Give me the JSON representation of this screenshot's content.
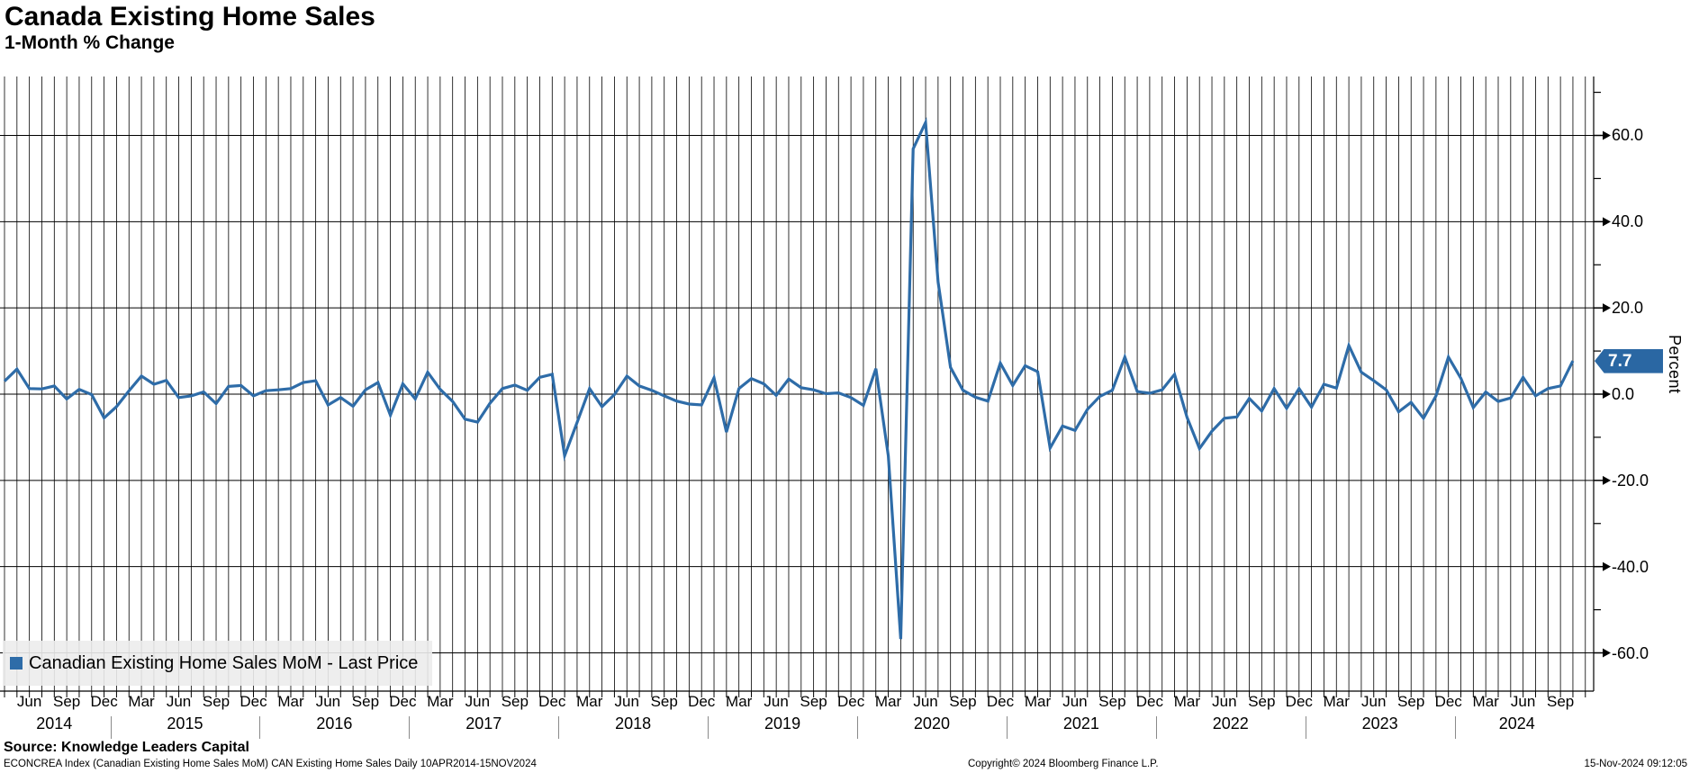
{
  "header": {
    "title": "Canada Existing Home Sales",
    "subtitle": "1-Month % Change"
  },
  "legend": {
    "series_label": "Canadian Existing Home Sales MoM - Last Price",
    "swatch_color": "#2e6ca8"
  },
  "last_price": {
    "label": "7.7",
    "value": 7.7,
    "badge_color": "#2a67a3"
  },
  "y_axis": {
    "unit_label": "Percent",
    "tick_labels": [
      "60.0",
      "40.0",
      "20.0",
      "0.0",
      "-20.0",
      "-40.0",
      "-60.0"
    ],
    "tick_values": [
      60,
      40,
      20,
      0,
      -20,
      -40,
      -60
    ],
    "minor_tick_values": [
      70,
      50,
      30,
      10,
      -10,
      -30,
      -50
    ]
  },
  "x_axis": {
    "month_labels": [
      "Jun",
      "Sep",
      "Dec",
      "Mar",
      "Jun",
      "Sep",
      "Dec",
      "Mar",
      "Jun",
      "Sep",
      "Dec",
      "Mar",
      "Jun",
      "Sep",
      "Dec",
      "Mar",
      "Jun",
      "Sep",
      "Dec",
      "Mar",
      "Jun",
      "Sep",
      "Dec",
      "Mar",
      "Jun",
      "Sep",
      "Dec",
      "Mar",
      "Jun",
      "Sep",
      "Dec",
      "Mar",
      "Jun",
      "Sep",
      "Dec",
      "Mar",
      "Jun",
      "Sep",
      "Dec",
      "Mar",
      "Jun",
      "Sep"
    ],
    "first_label_month_index": 2,
    "label_step": 3,
    "year_labels": [
      "2014",
      "2015",
      "2016",
      "2017",
      "2018",
      "2019",
      "2020",
      "2021",
      "2022",
      "2023",
      "2024"
    ]
  },
  "footer": {
    "source": "Source: Knowledge Leaders Capital",
    "left": "ECONCREA Index (Canadian Existing Home Sales MoM) CAN Existing Home Sales  Daily 10APR2014-15NOV2024",
    "center": "Copyright© 2024 Bloomberg Finance L.P.",
    "right": "15-Nov-2024 09:12:05"
  },
  "chart_data": {
    "type": "line",
    "title": "Canada Existing Home Sales",
    "subtitle": "1-Month % Change",
    "ylabel": "Percent",
    "ylim": [
      -69,
      74
    ],
    "y_ticks": [
      -60,
      -40,
      -20,
      0,
      20,
      40,
      60
    ],
    "grid": "vertical line each month, horizontal line each 20 units",
    "legend_position": "bottom-left",
    "line_color": "#2e6ca8",
    "series": [
      {
        "name": "Canadian Existing Home Sales MoM - Last Price",
        "start_month": "2014-04",
        "end_month": "2024-10",
        "frequency": "monthly",
        "values": [
          3.0,
          5.8,
          1.3,
          1.2,
          1.9,
          -1.1,
          1.1,
          -0.1,
          -5.5,
          -2.9,
          0.8,
          4.2,
          2.3,
          3.2,
          -0.8,
          -0.4,
          0.5,
          -2.2,
          1.8,
          2.0,
          -0.4,
          0.8,
          1.0,
          1.3,
          2.7,
          3.1,
          -2.5,
          -0.8,
          -2.8,
          1.0,
          2.7,
          -4.9,
          2.4,
          -1.1,
          5.1,
          1.1,
          -1.7,
          -5.8,
          -6.5,
          -2.1,
          1.3,
          2.1,
          0.9,
          3.9,
          4.6,
          -14.3,
          -6.6,
          1.3,
          -2.9,
          -0.1,
          4.2,
          1.9,
          0.9,
          -0.4,
          -1.6,
          -2.3,
          -2.5,
          3.8,
          -8.8,
          1.3,
          3.6,
          2.4,
          -0.3,
          3.5,
          1.5,
          1.0,
          0.1,
          0.3,
          -0.8,
          -2.6,
          5.9,
          -14.3,
          -56.8,
          56.9,
          63.0,
          26.0,
          6.2,
          0.9,
          -0.7,
          -1.6,
          7.2,
          2.0,
          6.6,
          5.2,
          -12.5,
          -7.4,
          -8.4,
          -3.5,
          -0.5,
          0.9,
          8.6,
          0.6,
          0.2,
          1.0,
          4.6,
          -5.4,
          -12.6,
          -8.6,
          -5.6,
          -5.3,
          -1.0,
          -3.9,
          1.3,
          -3.3,
          1.3,
          -3.0,
          2.3,
          1.4,
          11.3,
          5.1,
          3.1,
          1.0,
          -4.1,
          -1.9,
          -5.6,
          -0.4,
          8.6,
          3.7,
          -3.1,
          0.5,
          -1.7,
          -0.9,
          3.9,
          -0.4,
          1.3,
          1.9,
          7.7
        ]
      }
    ],
    "last_value": 7.7
  }
}
